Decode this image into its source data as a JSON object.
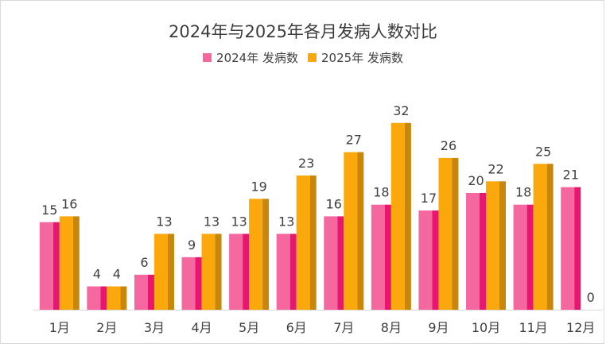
{
  "chart_data": {
    "type": "bar",
    "title": "2024年与2025年各月发病人数对比",
    "categories": [
      "1月",
      "2月",
      "3月",
      "4月",
      "5月",
      "6月",
      "7月",
      "8月",
      "9月",
      "10月",
      "11月",
      "12月"
    ],
    "series": [
      {
        "name": "2024年 发病数",
        "values": [
          15,
          4,
          6,
          9,
          13,
          13,
          16,
          18,
          17,
          20,
          18,
          21
        ],
        "color": "#f4679f",
        "shade": "#e8166e"
      },
      {
        "name": "2025年 发病数",
        "values": [
          16,
          4,
          13,
          13,
          19,
          23,
          27,
          32,
          26,
          22,
          25,
          0
        ],
        "color": "#fba80d",
        "shade": "#c8860a"
      }
    ],
    "legend": "top-center",
    "grid": false
  }
}
